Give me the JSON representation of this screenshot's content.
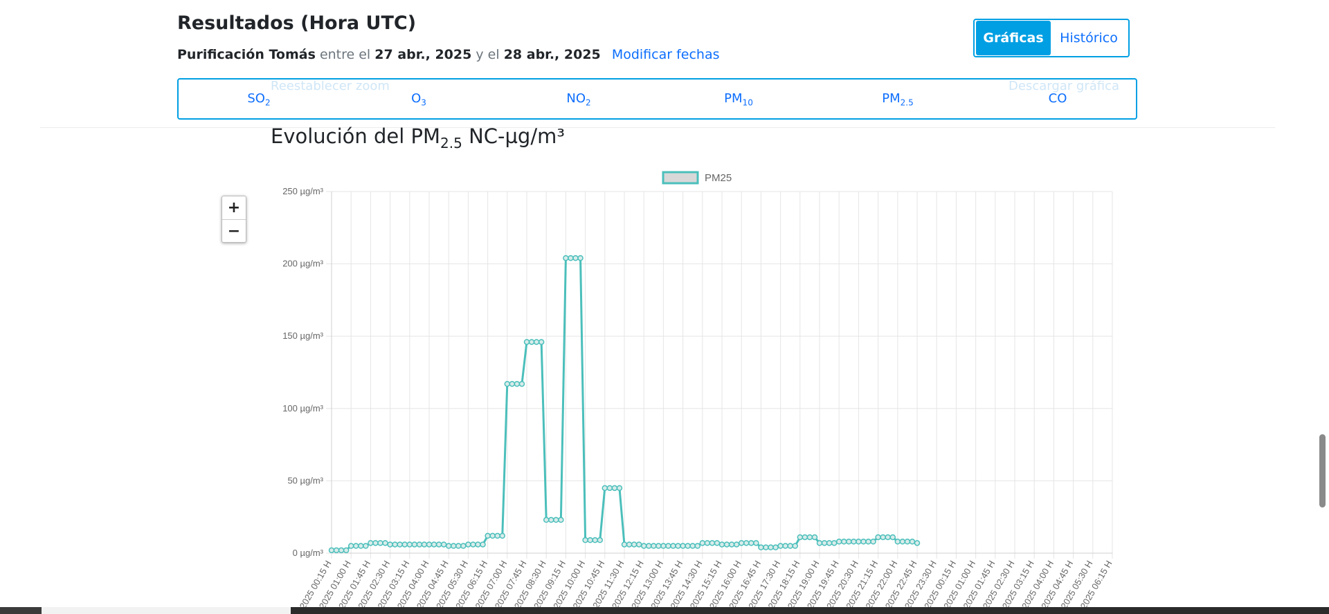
{
  "header": {
    "title": "Resultados (Hora UTC)",
    "station": "Purificación Tomás",
    "between": "entre el",
    "start_date": "27 abr., 2025",
    "and": "y el",
    "end_date": "28 abr., 2025",
    "modify_link": "Modificar fechas"
  },
  "view_toggle": {
    "charts": "Gráficas",
    "history": "Histórico"
  },
  "ghost_buttons": {
    "reset_zoom": "Reestablecer zoom",
    "download": "Descargar gráfica"
  },
  "tabs": [
    {
      "base": "SO",
      "sub": "2"
    },
    {
      "base": "O",
      "sub": "3"
    },
    {
      "base": "NO",
      "sub": "2"
    },
    {
      "base": "PM",
      "sub": "10"
    },
    {
      "base": "PM",
      "sub": "2.5"
    },
    {
      "base": "CO",
      "sub": ""
    }
  ],
  "chart_title": {
    "pre": "Evolución del PM",
    "sub": "2.5",
    "post": " NC-µg/m³"
  },
  "zoom": {
    "in": "+",
    "out": "−"
  },
  "chart_data": {
    "type": "line",
    "legend": "PM25",
    "legend_position": "top-center",
    "color": "#4bbfbb",
    "fill": "#d8d8d8",
    "ylim": [
      0,
      250
    ],
    "yticks": [
      "250 µg/m³",
      "200 µg/m³",
      "150 µg/m³",
      "100 µg/m³",
      "50 µg/m³",
      "0 µg/m³"
    ],
    "grid": true,
    "xticks": [
      "2025 00:15 H",
      "2025 01:00 H",
      "2025 01:45 H",
      "2025 02:30 H",
      "2025 03:15 H",
      "2025 04:00 H",
      "2025 04:45 H",
      "2025 05:30 H",
      "2025 06:15 H",
      "2025 07:00 H",
      "2025 07:45 H",
      "2025 08:30 H",
      "2025 09:15 H",
      "2025 10:00 H",
      "2025 10:45 H",
      "2025 11:30 H",
      "2025 12:15 H",
      "2025 13:00 H",
      "2025 13:45 H",
      "2025 14:30 H",
      "2025 15:15 H",
      "2025 16:00 H",
      "2025 16:45 H",
      "2025 17:30 H",
      "2025 18:15 H",
      "2025 19:00 H",
      "2025 19:45 H",
      "2025 20:30 H",
      "2025 21:15 H",
      "2025 22:00 H",
      "2025 22:45 H",
      "2025 23:30 H",
      "2025 00:15 H",
      "2025 01:00 H",
      "2025 01:45 H",
      "2025 02:30 H",
      "2025 03:15 H",
      "2025 04:00 H",
      "2025 04:45 H",
      "2025 05:30 H",
      "2025 06:15 H"
    ],
    "values": [
      2,
      2,
      2,
      2,
      5,
      5,
      5,
      5,
      7,
      7,
      7,
      7,
      6,
      6,
      6,
      6,
      6,
      6,
      6,
      6,
      6,
      6,
      6,
      6,
      5,
      5,
      5,
      5,
      6,
      6,
      6,
      6,
      12,
      12,
      12,
      12,
      117,
      117,
      117,
      117,
      146,
      146,
      146,
      146,
      23,
      23,
      23,
      23,
      204,
      204,
      204,
      204,
      9,
      9,
      9,
      9,
      45,
      45,
      45,
      45,
      6,
      6,
      6,
      6,
      5,
      5,
      5,
      5,
      5,
      5,
      5,
      5,
      5,
      5,
      5,
      5,
      7,
      7,
      7,
      7,
      6,
      6,
      6,
      6,
      7,
      7,
      7,
      7,
      4,
      4,
      4,
      4,
      5,
      5,
      5,
      5,
      11,
      11,
      11,
      11,
      7,
      7,
      7,
      7,
      8,
      8,
      8,
      8,
      8,
      8,
      8,
      8,
      11,
      11,
      11,
      11,
      8,
      8,
      8,
      8,
      7
    ]
  }
}
